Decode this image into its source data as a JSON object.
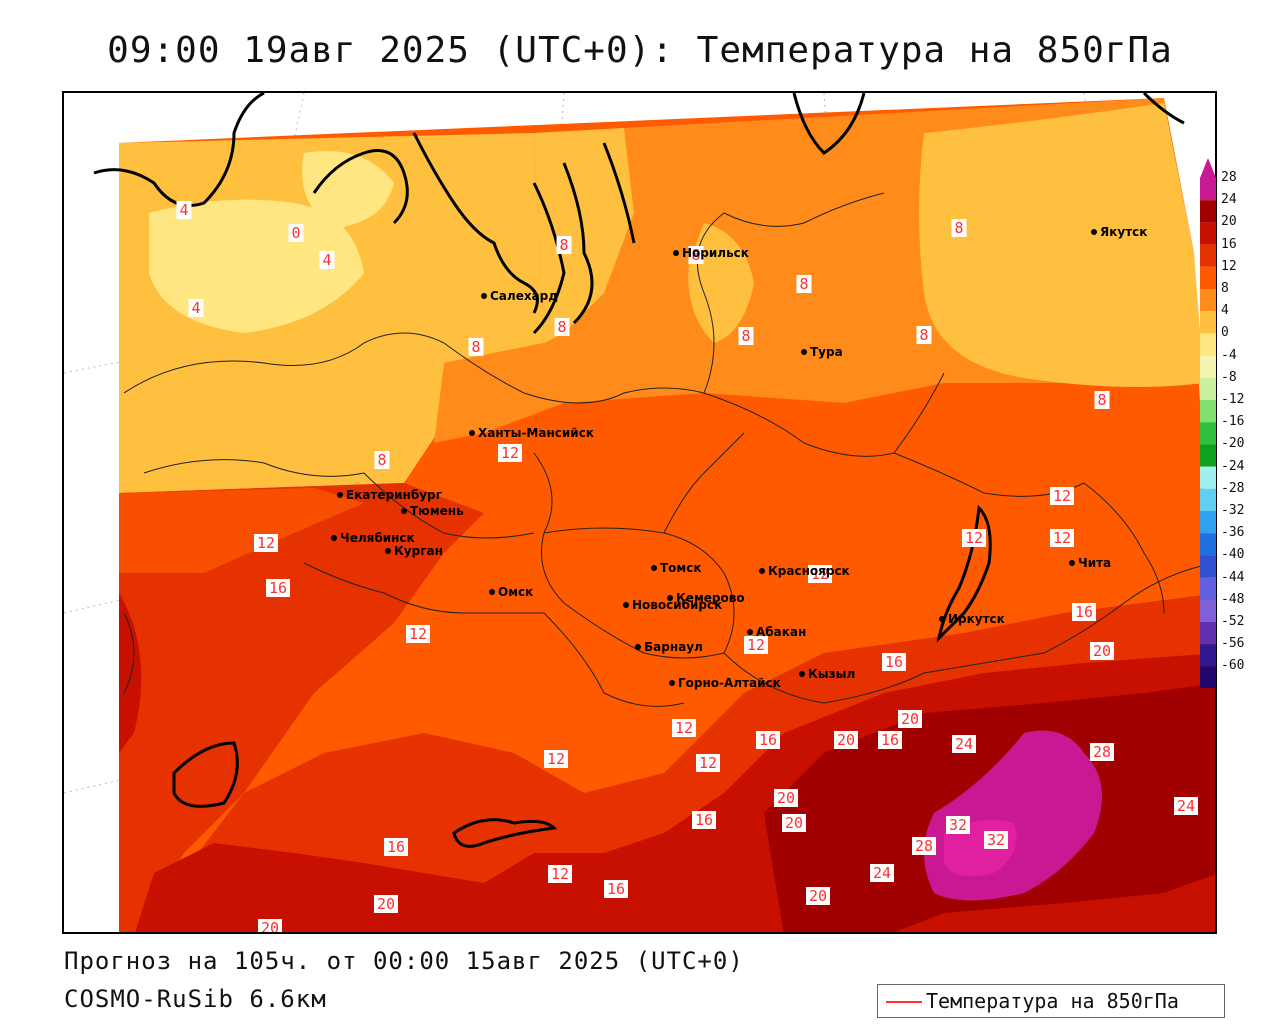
{
  "title": "09:00 19авг 2025 (UTC+0): Температура на 850гПа",
  "footer": {
    "forecast": "Прогноз на 105ч. от 00:00 15авг 2025 (UTC+0)",
    "model": "COSMO-RuSib 6.6км"
  },
  "legend": {
    "label": "Температура на 850гПа",
    "line_color": "#ff3030"
  },
  "colorscale": [
    {
      "value": "28",
      "color": "#c81892"
    },
    {
      "value": "24",
      "color": "#a00000"
    },
    {
      "value": "20",
      "color": "#c81000"
    },
    {
      "value": "16",
      "color": "#e63200"
    },
    {
      "value": "12",
      "color": "#ff5a00"
    },
    {
      "value": "8",
      "color": "#ff8c1a"
    },
    {
      "value": "4",
      "color": "#ffc040"
    },
    {
      "value": "0",
      "color": "#ffe680"
    },
    {
      "value": "-4",
      "color": "#f4f4b0"
    },
    {
      "value": "-8",
      "color": "#c8f0a0"
    },
    {
      "value": "-12",
      "color": "#80e070"
    },
    {
      "value": "-16",
      "color": "#30c040"
    },
    {
      "value": "-20",
      "color": "#10a020"
    },
    {
      "value": "-24",
      "color": "#a0f0f0"
    },
    {
      "value": "-28",
      "color": "#60d0f0"
    },
    {
      "value": "-32",
      "color": "#30a0f0"
    },
    {
      "value": "-36",
      "color": "#2070e0"
    },
    {
      "value": "-40",
      "color": "#3050d0"
    },
    {
      "value": "-44",
      "color": "#6060e0"
    },
    {
      "value": "-48",
      "color": "#8060d8"
    },
    {
      "value": "-52",
      "color": "#6030b0"
    },
    {
      "value": "-56",
      "color": "#301890"
    },
    {
      "value": "-60",
      "color": "#200870"
    }
  ],
  "cities": [
    {
      "name": "Норильск"
    },
    {
      "name": "Якутск"
    },
    {
      "name": "Салехард"
    },
    {
      "name": "Тура"
    },
    {
      "name": "Ханты-Мансийск"
    },
    {
      "name": "Екатеринбург"
    },
    {
      "name": "Тюмень"
    },
    {
      "name": "Челябинск"
    },
    {
      "name": "Курган"
    },
    {
      "name": "Омск"
    },
    {
      "name": "Томск"
    },
    {
      "name": "Красноярск"
    },
    {
      "name": "Новосибирск"
    },
    {
      "name": "Кемерово"
    },
    {
      "name": "Абакан"
    },
    {
      "name": "Барнаул"
    },
    {
      "name": "Горно-Алтайск"
    },
    {
      "name": "Кызыл"
    },
    {
      "name": "Иркутск"
    },
    {
      "name": "Чита"
    }
  ],
  "isotherm_labels": [
    "4",
    "0",
    "4",
    "4",
    "8",
    "8",
    "8",
    "8",
    "8",
    "8",
    "8",
    "8",
    "8",
    "8",
    "12",
    "12",
    "12",
    "12",
    "12",
    "16",
    "12",
    "12",
    "12",
    "12",
    "12",
    "12",
    "16",
    "16",
    "20",
    "20",
    "16",
    "20",
    "16",
    "24",
    "28",
    "20",
    "20",
    "16",
    "12",
    "16",
    "16",
    "16",
    "20",
    "24",
    "32",
    "32",
    "28",
    "24",
    "20",
    "20"
  ]
}
